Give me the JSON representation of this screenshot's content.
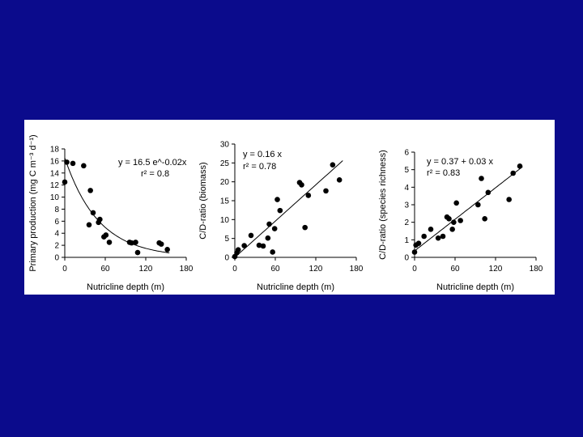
{
  "chart_data": [
    {
      "type": "scatter",
      "xlabel": "Nutricline depth (m)",
      "ylabel": "Primary production (mg C m⁻³ d⁻¹)",
      "xlim": [
        0,
        180
      ],
      "ylim": [
        0,
        18
      ],
      "xticks": [
        0,
        60,
        120,
        180
      ],
      "yticks": [
        0,
        2,
        4,
        6,
        8,
        10,
        12,
        14,
        16,
        18
      ],
      "equation": "y = 16.5 e^-0.02x",
      "r2": "r² = 0.8",
      "fit": {
        "kind": "exponential",
        "a": 16.5,
        "b": -0.02
      },
      "points": [
        [
          0,
          12.5
        ],
        [
          3,
          15.8
        ],
        [
          12,
          15.6
        ],
        [
          28,
          15.2
        ],
        [
          36,
          5.4
        ],
        [
          38,
          11.1
        ],
        [
          42,
          7.4
        ],
        [
          50,
          5.8
        ],
        [
          52,
          6.3
        ],
        [
          58,
          3.4
        ],
        [
          61,
          3.7
        ],
        [
          66,
          2.5
        ],
        [
          96,
          2.5
        ],
        [
          99,
          2.4
        ],
        [
          105,
          2.5
        ],
        [
          108,
          0.8
        ],
        [
          140,
          2.4
        ],
        [
          143,
          2.2
        ],
        [
          152,
          1.3
        ]
      ]
    },
    {
      "type": "scatter",
      "xlabel": "Nutricline depth (m)",
      "ylabel": "C/D-ratio (biomass)",
      "xlim": [
        0,
        180
      ],
      "ylim": [
        0,
        30
      ],
      "xticks": [
        0,
        60,
        120,
        180
      ],
      "yticks": [
        0,
        5,
        10,
        15,
        20,
        25,
        30
      ],
      "equation": "y = 0.16 x",
      "r2": "r² = 0.78",
      "fit": {
        "kind": "linear",
        "intercept": 0,
        "slope": 0.16
      },
      "points": [
        [
          0,
          0.2
        ],
        [
          3,
          1.2
        ],
        [
          5,
          2.0
        ],
        [
          14,
          3.1
        ],
        [
          24,
          5.8
        ],
        [
          36,
          3.2
        ],
        [
          42,
          3.0
        ],
        [
          49,
          5.1
        ],
        [
          51,
          8.8
        ],
        [
          56,
          1.4
        ],
        [
          59,
          7.6
        ],
        [
          63,
          15.3
        ],
        [
          67,
          12.4
        ],
        [
          96,
          19.8
        ],
        [
          99,
          19.2
        ],
        [
          104,
          7.9
        ],
        [
          109,
          16.4
        ],
        [
          135,
          17.6
        ],
        [
          145,
          24.5
        ],
        [
          155,
          20.5
        ]
      ]
    },
    {
      "type": "scatter",
      "xlabel": "Nutricline depth (m)",
      "ylabel": "C/D-ratio (species richness)",
      "xlim": [
        0,
        180
      ],
      "ylim": [
        0,
        6
      ],
      "xticks": [
        0,
        60,
        120,
        180
      ],
      "yticks": [
        0,
        1,
        2,
        3,
        4,
        5,
        6
      ],
      "equation": "y = 0.37 + 0.03 x",
      "r2": "r² = 0.83",
      "fit": {
        "kind": "linear",
        "intercept": 0.37,
        "slope": 0.03
      },
      "points": [
        [
          0,
          0.3
        ],
        [
          2,
          0.7
        ],
        [
          6,
          0.8
        ],
        [
          14,
          1.2
        ],
        [
          24,
          1.6
        ],
        [
          35,
          1.1
        ],
        [
          42,
          1.2
        ],
        [
          48,
          2.3
        ],
        [
          51,
          2.2
        ],
        [
          56,
          1.6
        ],
        [
          58,
          2.0
        ],
        [
          62,
          3.1
        ],
        [
          68,
          2.1
        ],
        [
          94,
          3.0
        ],
        [
          99,
          4.5
        ],
        [
          104,
          2.2
        ],
        [
          109,
          3.7
        ],
        [
          140,
          3.3
        ],
        [
          146,
          4.8
        ],
        [
          156,
          5.2
        ]
      ]
    }
  ]
}
